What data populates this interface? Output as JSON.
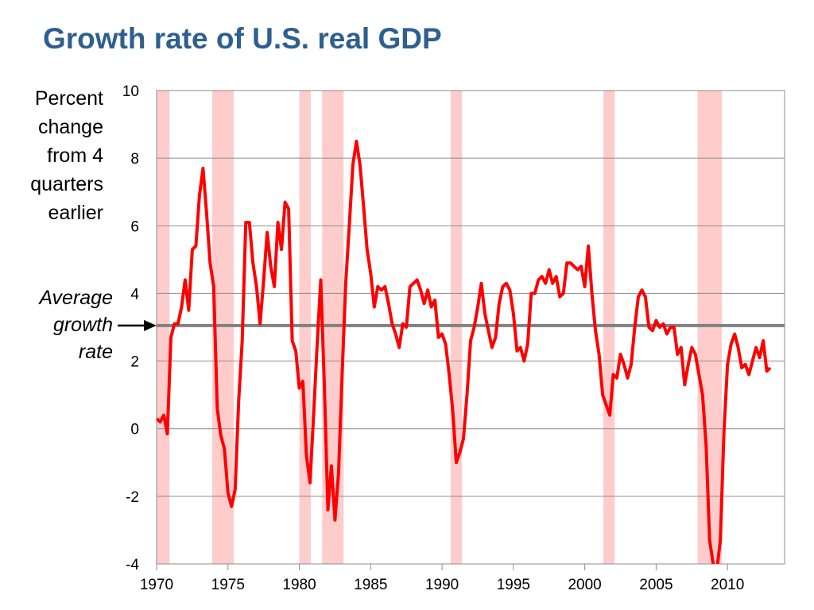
{
  "title": "Growth rate of U.S. real GDP",
  "ylabel_lines": [
    "Percent",
    "change",
    "from 4",
    "quarters",
    "earlier"
  ],
  "annotation_lines": [
    "Average",
    "growth",
    "rate"
  ],
  "colors": {
    "title": "#2E5F8F",
    "line": "#FF0000",
    "recession": "#FFCCCC",
    "average": "#808080"
  },
  "chart_data": {
    "type": "line",
    "title": "Growth rate of U.S. real GDP",
    "xlabel": "",
    "ylabel": "Percent change from 4 quarters earlier",
    "xlim": [
      1970,
      2014
    ],
    "ylim": [
      -4,
      10
    ],
    "x_ticks": [
      1970,
      1975,
      1980,
      1985,
      1990,
      1995,
      2000,
      2005,
      2010
    ],
    "y_ticks": [
      -4,
      -2,
      0,
      2,
      4,
      6,
      8,
      10
    ],
    "grid": "horizontal",
    "average_growth_rate": 3.05,
    "recessions": [
      [
        1970.0,
        1970.9
      ],
      [
        1973.9,
        1975.4
      ],
      [
        1980.0,
        1980.8
      ],
      [
        1981.6,
        1983.1
      ],
      [
        1990.6,
        1991.4
      ],
      [
        2001.3,
        2002.1
      ],
      [
        2007.9,
        2009.6
      ]
    ],
    "series": [
      {
        "x": [
          1970.0,
          1970.25,
          1970.5,
          1970.75,
          1971.0,
          1971.25,
          1971.5,
          1971.75,
          1972.0,
          1972.25,
          1972.5,
          1972.75,
          1973.0,
          1973.25,
          1973.5,
          1973.75,
          1974.0,
          1974.25,
          1974.5,
          1974.75,
          1975.0,
          1975.25,
          1975.5,
          1975.75,
          1976.0,
          1976.25,
          1976.5,
          1976.75,
          1977.0,
          1977.25,
          1977.5,
          1977.75,
          1978.0,
          1978.25,
          1978.5,
          1978.75,
          1979.0,
          1979.25,
          1979.5,
          1979.75,
          1980.0,
          1980.25,
          1980.5,
          1980.75,
          1981.0,
          1981.25,
          1981.5,
          1981.75,
          1982.0,
          1982.25,
          1982.5,
          1982.75,
          1983.0,
          1983.25,
          1983.5,
          1983.75,
          1984.0,
          1984.25,
          1984.5,
          1984.75,
          1985.0,
          1985.25,
          1985.5,
          1985.75,
          1986.0,
          1986.25,
          1986.5,
          1986.75,
          1987.0,
          1987.25,
          1987.5,
          1987.75,
          1988.0,
          1988.25,
          1988.5,
          1988.75,
          1989.0,
          1989.25,
          1989.5,
          1989.75,
          1990.0,
          1990.25,
          1990.5,
          1990.75,
          1991.0,
          1991.25,
          1991.5,
          1991.75,
          1992.0,
          1992.25,
          1992.5,
          1992.75,
          1993.0,
          1993.25,
          1993.5,
          1993.75,
          1994.0,
          1994.25,
          1994.5,
          1994.75,
          1995.0,
          1995.25,
          1995.5,
          1995.75,
          1996.0,
          1996.25,
          1996.5,
          1996.75,
          1997.0,
          1997.25,
          1997.5,
          1997.75,
          1998.0,
          1998.25,
          1998.5,
          1998.75,
          1999.0,
          1999.25,
          1999.5,
          1999.75,
          2000.0,
          2000.25,
          2000.5,
          2000.75,
          2001.0,
          2001.25,
          2001.5,
          2001.75,
          2002.0,
          2002.25,
          2002.5,
          2002.75,
          2003.0,
          2003.25,
          2003.5,
          2003.75,
          2004.0,
          2004.25,
          2004.5,
          2004.75,
          2005.0,
          2005.25,
          2005.5,
          2005.75,
          2006.0,
          2006.25,
          2006.5,
          2006.75,
          2007.0,
          2007.25,
          2007.5,
          2007.75,
          2008.0,
          2008.25,
          2008.5,
          2008.75,
          2009.0,
          2009.25,
          2009.5,
          2009.75,
          2010.0,
          2010.25,
          2010.5,
          2010.75,
          2011.0,
          2011.25,
          2011.5,
          2011.75,
          2012.0,
          2012.25,
          2012.5,
          2012.75,
          2013.0
        ],
        "values": [
          0.3,
          0.2,
          0.4,
          -0.15,
          2.7,
          3.1,
          3.1,
          3.6,
          4.4,
          3.5,
          5.3,
          5.4,
          6.9,
          7.7,
          6.4,
          4.9,
          4.2,
          0.6,
          -0.2,
          -0.6,
          -1.9,
          -2.3,
          -1.8,
          0.8,
          2.6,
          6.1,
          6.1,
          4.9,
          4.2,
          3.1,
          4.4,
          5.8,
          4.8,
          4.2,
          6.1,
          5.3,
          6.7,
          6.5,
          2.6,
          2.3,
          1.2,
          1.4,
          -0.8,
          -1.6,
          0.4,
          2.5,
          4.4,
          1.3,
          -2.4,
          -1.1,
          -2.7,
          -1.3,
          1.6,
          4.3,
          6.0,
          7.8,
          8.5,
          7.8,
          6.6,
          5.3,
          4.6,
          3.6,
          4.2,
          4.1,
          4.2,
          3.7,
          3.1,
          2.8,
          2.4,
          3.1,
          3.0,
          4.2,
          4.3,
          4.4,
          4.1,
          3.7,
          4.1,
          3.6,
          3.8,
          2.7,
          2.8,
          2.5,
          1.6,
          0.5,
          -1.0,
          -0.7,
          -0.3,
          1.0,
          2.6,
          3.0,
          3.6,
          4.3,
          3.4,
          2.9,
          2.4,
          2.7,
          3.7,
          4.2,
          4.3,
          4.1,
          3.4,
          2.3,
          2.4,
          2.0,
          2.5,
          4.0,
          4.0,
          4.4,
          4.5,
          4.3,
          4.7,
          4.3,
          4.5,
          3.9,
          4.0,
          4.9,
          4.9,
          4.8,
          4.7,
          4.8,
          4.2,
          5.4,
          4.0,
          2.9,
          2.2,
          1.0,
          0.7,
          0.4,
          1.6,
          1.5,
          2.2,
          1.9,
          1.5,
          1.9,
          3.0,
          3.9,
          4.1,
          3.9,
          3.0,
          2.9,
          3.2,
          3.0,
          3.1,
          2.8,
          3.0,
          3.0,
          2.2,
          2.4,
          1.3,
          1.9,
          2.4,
          2.2,
          1.6,
          1.0,
          -0.5,
          -3.3,
          -4.0,
          -4.2,
          -3.3,
          -0.1,
          1.9,
          2.5,
          2.8,
          2.4,
          1.8,
          1.9,
          1.6,
          2.0,
          2.4,
          2.1,
          2.6,
          1.7,
          1.8
        ]
      }
    ]
  }
}
